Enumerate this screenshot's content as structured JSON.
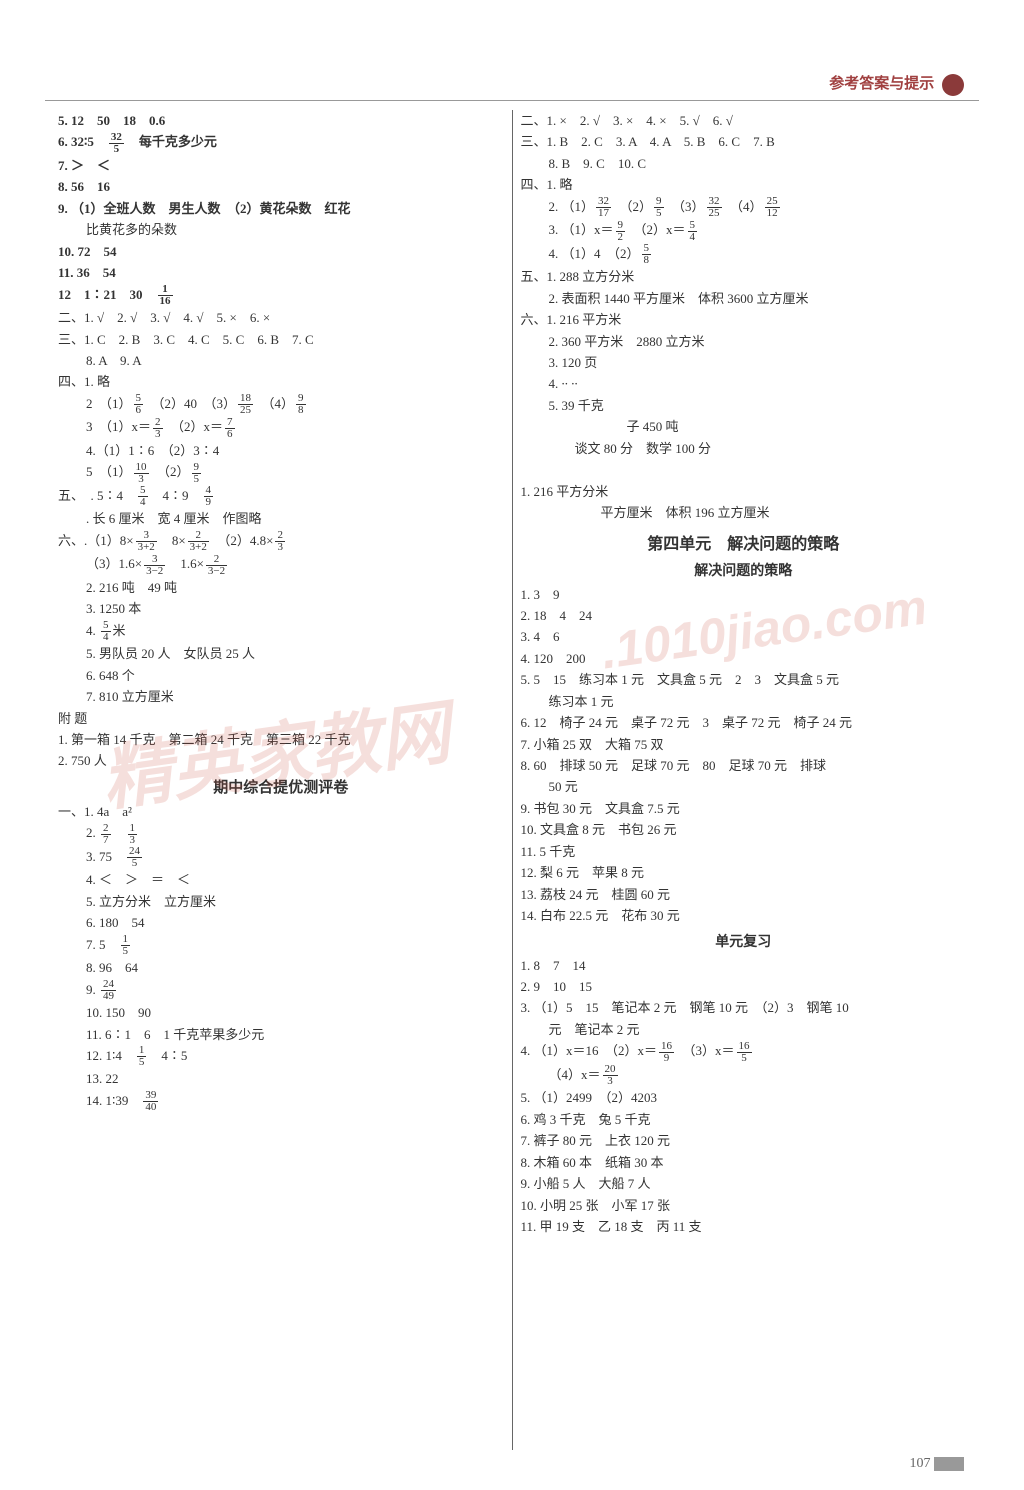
{
  "header": "参考答案与提示",
  "page_number": "107",
  "left": [
    {
      "cls": "line bold",
      "t": "5. 12　50　18　0.6"
    },
    {
      "cls": "line bold",
      "t": "6. 32∶5　",
      "frac": [
        "32",
        "5"
      ],
      "after": "　每千克多少元"
    },
    {
      "cls": "line bold",
      "t": "7. ＞　＜"
    },
    {
      "cls": "line bold",
      "t": "8. 56　16"
    },
    {
      "cls": "line bold",
      "t": "9. （1）全班人数　男生人数　（2）黄花朵数　红花"
    },
    {
      "cls": "line indent1",
      "t": "比黄花多的朵数"
    },
    {
      "cls": "line bold",
      "t": "10. 72　54"
    },
    {
      "cls": "line bold",
      "t": "11. 36　54"
    },
    {
      "cls": "line bold",
      "t": "12　1∶21　30　",
      "frac": [
        "1",
        "16"
      ]
    },
    {
      "cls": "line",
      "t": "二、1. √　2. √　3. √　4. √　5. ×　6. ×"
    },
    {
      "cls": "line",
      "t": "三、1. C　2. B　3. C　4. C　5. C　6. B　7. C"
    },
    {
      "cls": "line indent1",
      "t": "8. A　9. A"
    },
    {
      "cls": "line",
      "t": "四、1. 略"
    },
    {
      "cls": "line indent1",
      "t": "2　（1）",
      "frac": [
        "5",
        "6"
      ],
      "after": "　（2）40　（3）",
      "frac2": [
        "18",
        "25"
      ],
      "after2": "　（4）",
      "frac3": [
        "9",
        "8"
      ]
    },
    {
      "cls": "line indent1",
      "t": "3　（1）x＝",
      "frac": [
        "2",
        "3"
      ],
      "after": "　（2）x＝",
      "frac2": [
        "7",
        "6"
      ]
    },
    {
      "cls": "line indent1",
      "t": "4.（1）1∶6　（2）3∶4"
    },
    {
      "cls": "line indent1",
      "t": "5　（1）",
      "frac": [
        "10",
        "3"
      ],
      "after": "　（2）",
      "frac2": [
        "9",
        "5"
      ]
    },
    {
      "cls": "line",
      "t": "五、　. 5∶4　",
      "frac": [
        "5",
        "4"
      ],
      "after": "　4∶9　",
      "frac2": [
        "4",
        "9"
      ]
    },
    {
      "cls": "line indent1",
      "t": ". 长 6 厘米　宽 4 厘米　作图略"
    },
    {
      "cls": "line",
      "t": "六、.（1）8×",
      "frac": [
        "3",
        "3+2"
      ],
      "after": "　8×",
      "frac2": [
        "2",
        "3+2"
      ],
      "after2": "　（2）4.8×",
      "frac3": [
        "2",
        "3"
      ]
    },
    {
      "cls": "line indent1",
      "t": "（3）1.6×",
      "frac": [
        "3",
        "3−2"
      ],
      "after": "　1.6×",
      "frac2": [
        "2",
        "3−2"
      ]
    },
    {
      "cls": "line indent1",
      "t": "2. 216 吨　49 吨"
    },
    {
      "cls": "line indent1",
      "t": "3. 1250 本"
    },
    {
      "cls": "line indent1",
      "t": "4. ",
      "frac": [
        "5",
        "4"
      ],
      "after": "米"
    },
    {
      "cls": "line indent1",
      "t": "5. 男队员 20 人　女队员 25 人"
    },
    {
      "cls": "line indent1",
      "t": "6. 648 个"
    },
    {
      "cls": "line indent1",
      "t": "7. 810 立方厘米"
    },
    {
      "cls": "line",
      "t": "附 题"
    },
    {
      "cls": "line",
      "t": "1. 第一箱 14 千克　第二箱 24 千克　第三箱 22 千克"
    },
    {
      "cls": "line",
      "t": "2. 750 人"
    },
    {
      "cls": "center",
      "t": "期中综合提优测评卷"
    },
    {
      "cls": "line",
      "t": "一、1. 4a　a²"
    },
    {
      "cls": "line indent1",
      "t": "2. ",
      "frac": [
        "2",
        "7"
      ],
      "after": "　",
      "frac2": [
        "1",
        "3"
      ]
    },
    {
      "cls": "line indent1",
      "t": "3. 75　",
      "frac": [
        "24",
        "5"
      ]
    },
    {
      "cls": "line indent1",
      "t": "4. ＜　＞　＝　＜"
    },
    {
      "cls": "line indent1",
      "t": "5. 立方分米　立方厘米"
    },
    {
      "cls": "line indent1",
      "t": "6. 180　54"
    },
    {
      "cls": "line indent1",
      "t": "7. 5　",
      "frac": [
        "1",
        "5"
      ]
    },
    {
      "cls": "line indent1",
      "t": "8. 96　64"
    },
    {
      "cls": "line indent1",
      "t": "9. ",
      "frac": [
        "24",
        "49"
      ]
    },
    {
      "cls": "line indent1",
      "t": "10. 150　90"
    },
    {
      "cls": "line indent1",
      "t": "11. 6∶1　6　1 千克苹果多少元"
    },
    {
      "cls": "line indent1",
      "t": "12. 1∶4　",
      "frac": [
        "1",
        "5"
      ],
      "after": "　4∶5"
    },
    {
      "cls": "line indent1",
      "t": "13. 22"
    },
    {
      "cls": "line indent1",
      "t": "14. 1∶39　",
      "frac": [
        "39",
        "40"
      ]
    }
  ],
  "right": [
    {
      "cls": "line",
      "t": "二、1. ×　2. √　3. ×　4. ×　5. √　6. √"
    },
    {
      "cls": "line",
      "t": "三、1. B　2. C　3. A　4. A　5. B　6. C　7. B"
    },
    {
      "cls": "line indent1",
      "t": "8. B　9. C　10. C"
    },
    {
      "cls": "line",
      "t": "四、1. 略"
    },
    {
      "cls": "line indent1",
      "t": "2. （1）",
      "frac": [
        "32",
        "17"
      ],
      "after": "　（2）",
      "frac2": [
        "9",
        "5"
      ],
      "after2": "　（3）",
      "frac3": [
        "32",
        "25"
      ],
      "after3": "　（4）",
      "frac4": [
        "25",
        "12"
      ]
    },
    {
      "cls": "line indent1",
      "t": "3. （1）x＝",
      "frac": [
        "9",
        "2"
      ],
      "after": "　（2）x＝",
      "frac2": [
        "5",
        "4"
      ]
    },
    {
      "cls": "line indent1",
      "t": "4. （1）4　（2）",
      "frac": [
        "5",
        "8"
      ]
    },
    {
      "cls": "line",
      "t": "五、1. 288 立方分米"
    },
    {
      "cls": "line indent1",
      "t": "2. 表面积 1440 平方厘米　体积 3600 立方厘米"
    },
    {
      "cls": "line",
      "t": "六、1. 216 平方米"
    },
    {
      "cls": "line indent1",
      "t": "2. 360 平方米　2880 立方米"
    },
    {
      "cls": "line indent1",
      "t": "3. 120 页"
    },
    {
      "cls": "line indent1",
      "t": "4. ∙∙ ∙∙"
    },
    {
      "cls": "line indent1",
      "t": "5. 39 千克"
    },
    {
      "cls": "line indent1",
      "t": "　　　　　　子 450 吨"
    },
    {
      "cls": "line indent1",
      "t": "　　谈文 80 分　数学 100 分"
    },
    {
      "cls": "line indent1",
      "t": "　"
    },
    {
      "cls": "line",
      "t": "1. 216 平方分米"
    },
    {
      "cls": "line indent1",
      "t": "　　　　平方厘米　体积 196 立方厘米"
    },
    {
      "cls": "section-title",
      "t": "第四单元　解决问题的策略"
    },
    {
      "cls": "sub-title",
      "t": "解决问题的策略"
    },
    {
      "cls": "line",
      "t": "1. 3　9"
    },
    {
      "cls": "line",
      "t": "2. 18　4　24"
    },
    {
      "cls": "line",
      "t": "3. 4　6"
    },
    {
      "cls": "line",
      "t": "4. 120　200"
    },
    {
      "cls": "line",
      "t": "5. 5　15　练习本 1 元　文具盒 5 元　2　3　文具盒 5 元"
    },
    {
      "cls": "line indent1",
      "t": "练习本 1 元"
    },
    {
      "cls": "line",
      "t": "6. 12　椅子 24 元　桌子 72 元　3　桌子 72 元　椅子 24 元"
    },
    {
      "cls": "line",
      "t": "7. 小箱 25 双　大箱 75 双"
    },
    {
      "cls": "line",
      "t": "8. 60　排球 50 元　足球 70 元　80　足球 70 元　排球"
    },
    {
      "cls": "line indent1",
      "t": "50 元"
    },
    {
      "cls": "line",
      "t": "9. 书包 30 元　文具盒 7.5 元"
    },
    {
      "cls": "line",
      "t": "10. 文具盒 8 元　书包 26 元"
    },
    {
      "cls": "line",
      "t": "11. 5 千克"
    },
    {
      "cls": "line",
      "t": "12. 梨 6 元　苹果 8 元"
    },
    {
      "cls": "line",
      "t": "13. 荔枝 24 元　桂圆 60 元"
    },
    {
      "cls": "line",
      "t": "14. 白布 22.5 元　花布 30 元"
    },
    {
      "cls": "sub-title",
      "t": "单元复习"
    },
    {
      "cls": "line",
      "t": "1. 8　7　14"
    },
    {
      "cls": "line",
      "t": "2. 9　10　15"
    },
    {
      "cls": "line",
      "t": "3. （1）5　15　笔记本 2 元　钢笔 10 元　（2）3　钢笔 10"
    },
    {
      "cls": "line indent1",
      "t": "元　笔记本 2 元"
    },
    {
      "cls": "line",
      "t": "4. （1）x＝16　（2）x＝",
      "frac": [
        "16",
        "9"
      ],
      "after": "　（3）x＝",
      "frac2": [
        "16",
        "5"
      ]
    },
    {
      "cls": "line indent1",
      "t": "（4）x＝",
      "frac": [
        "20",
        "3"
      ]
    },
    {
      "cls": "line",
      "t": "5. （1）2499　（2）4203"
    },
    {
      "cls": "line",
      "t": "6. 鸡 3 千克　兔 5 千克"
    },
    {
      "cls": "line",
      "t": "7. 裤子 80 元　上衣 120 元"
    },
    {
      "cls": "line",
      "t": "8. 木箱 60 本　纸箱 30 本"
    },
    {
      "cls": "line",
      "t": "9. 小船 5 人　大船 7 人"
    },
    {
      "cls": "line",
      "t": "10. 小明 25 张　小军 17 张"
    },
    {
      "cls": "line",
      "t": "11. 甲 19 支　乙 18 支　丙 11 支"
    }
  ],
  "watermarks": [
    "精英家教网",
    ".1010jiao.com"
  ]
}
